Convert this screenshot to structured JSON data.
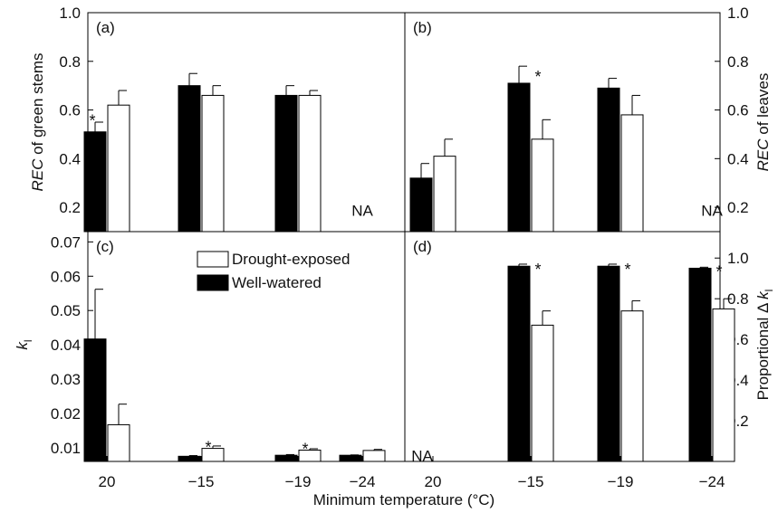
{
  "figure": {
    "xlabel": "Minimum temperature (°C)",
    "categories": [
      "20",
      "−15",
      "−19",
      "−24"
    ],
    "colors": {
      "well_watered": "#000000",
      "drought_exposed": "#ffffff",
      "axis": "#000000"
    }
  },
  "chart_data": [
    {
      "panel": "(a)",
      "type": "bar",
      "ylabel_italic": "REC",
      "ylabel_rest": " of green stems",
      "y_axis_side": "left",
      "ylim": [
        0.1,
        1.0
      ],
      "yticks": [
        0.2,
        0.4,
        0.6,
        0.8,
        1.0
      ],
      "ytick_labels": [
        "0.2",
        "0.4",
        "0.6",
        "0.8",
        "1.0"
      ],
      "categories": [
        "20",
        "−15",
        "−19",
        "−24"
      ],
      "series": [
        {
          "name": "Well-watered",
          "values": [
            0.51,
            0.7,
            0.66,
            null
          ],
          "errors": [
            0.04,
            0.05,
            0.04,
            null
          ]
        },
        {
          "name": "Drought-exposed",
          "values": [
            0.62,
            0.66,
            0.66,
            null
          ],
          "errors": [
            0.06,
            0.04,
            0.02,
            null
          ]
        }
      ],
      "annotations": [
        {
          "text": "*",
          "category": 0,
          "y": 0.57
        },
        {
          "text": "NA",
          "category": 3,
          "y": 0.18
        }
      ]
    },
    {
      "panel": "(b)",
      "type": "bar",
      "ylabel_italic": "REC",
      "ylabel_rest": " of leaves",
      "y_axis_side": "right",
      "ylim": [
        0.1,
        1.0
      ],
      "yticks": [
        0.2,
        0.4,
        0.6,
        0.8,
        1.0
      ],
      "ytick_labels": [
        "0.2",
        "0.4",
        "0.6",
        "0.8",
        "1.0"
      ],
      "categories": [
        "20",
        "−15",
        "−19",
        "−24"
      ],
      "series": [
        {
          "name": "Well-watered",
          "values": [
            0.32,
            0.71,
            0.69,
            null
          ],
          "errors": [
            0.06,
            0.07,
            0.04,
            null
          ]
        },
        {
          "name": "Drought-exposed",
          "values": [
            0.41,
            0.48,
            0.58,
            null
          ],
          "errors": [
            0.07,
            0.08,
            0.08,
            null
          ]
        }
      ],
      "annotations": [
        {
          "text": "*",
          "category": 1,
          "y": 0.75
        },
        {
          "text": "NA",
          "category": 3,
          "y": 0.18
        }
      ]
    },
    {
      "panel": "(c)",
      "type": "bar",
      "ylabel_italic": "k",
      "ylabel_sub": "l",
      "y_axis_side": "left",
      "ylim": [
        0.006,
        0.073
      ],
      "yticks": [
        0.01,
        0.02,
        0.03,
        0.04,
        0.05,
        0.06,
        0.07
      ],
      "ytick_labels": [
        "0.01",
        "0.02",
        "0.03",
        "0.04",
        "0.05",
        "0.06",
        "0.07"
      ],
      "categories": [
        "20",
        "−15",
        "−19",
        "−24"
      ],
      "series": [
        {
          "name": "Well-watered",
          "values": [
            0.0417,
            0.0075,
            0.0078,
            0.0078
          ],
          "errors": [
            0.0145,
            0.0002,
            0.0002,
            0.0001
          ]
        },
        {
          "name": "Drought-exposed",
          "values": [
            0.0167,
            0.0098,
            0.0093,
            0.0092
          ],
          "errors": [
            0.006,
            0.0007,
            0.0004,
            0.0003
          ]
        }
      ],
      "legend": [
        "Drought-exposed",
        "Well-watered"
      ],
      "annotations": [
        {
          "text": "*",
          "category": 1,
          "y": 0.0112
        },
        {
          "text": "*",
          "category": 2,
          "y": 0.0106
        }
      ]
    },
    {
      "panel": "(d)",
      "type": "bar",
      "ylabel_text": "Proportional Δ ",
      "ylabel_italic": "k",
      "ylabel_sub": "l",
      "y_axis_side": "right",
      "ylim": [
        0.0,
        1.13
      ],
      "yticks": [
        0.2,
        0.4,
        0.6,
        0.8,
        1.0
      ],
      "ytick_labels": [
        "0.2",
        "0.4",
        "0.6",
        "0.8",
        "1.0"
      ],
      "categories": [
        "20",
        "−15",
        "−19",
        "−24"
      ],
      "series": [
        {
          "name": "Well-watered",
          "values": [
            null,
            0.96,
            0.96,
            0.95
          ],
          "errors": [
            null,
            0.01,
            0.01,
            0.005
          ]
        },
        {
          "name": "Drought-exposed",
          "values": [
            null,
            0.67,
            0.74,
            0.75
          ],
          "errors": [
            null,
            0.07,
            0.05,
            0.05
          ]
        }
      ],
      "annotations": [
        {
          "text": "NA",
          "category": 0,
          "y": 0.02
        },
        {
          "text": "*",
          "category": 1,
          "y": 0.96
        },
        {
          "text": "*",
          "category": 2,
          "y": 0.96
        },
        {
          "text": "*",
          "category": 3,
          "y": 0.95
        }
      ]
    }
  ]
}
